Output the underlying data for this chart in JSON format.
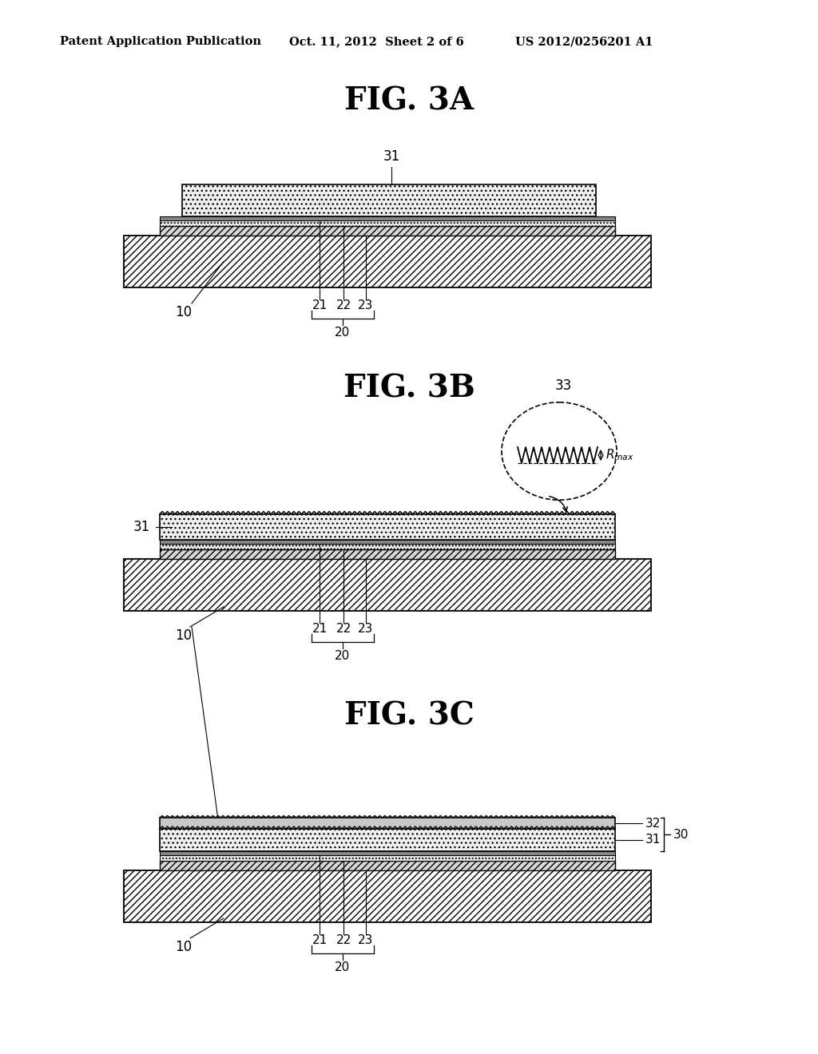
{
  "bg_color": "#ffffff",
  "header_left": "Patent Application Publication",
  "header_mid": "Oct. 11, 2012  Sheet 2 of 6",
  "header_right": "US 2012/0256201 A1",
  "fig3a_title": "FIG. 3A",
  "fig3b_title": "FIG. 3B",
  "fig3c_title": "FIG. 3C",
  "line_color": "#000000"
}
